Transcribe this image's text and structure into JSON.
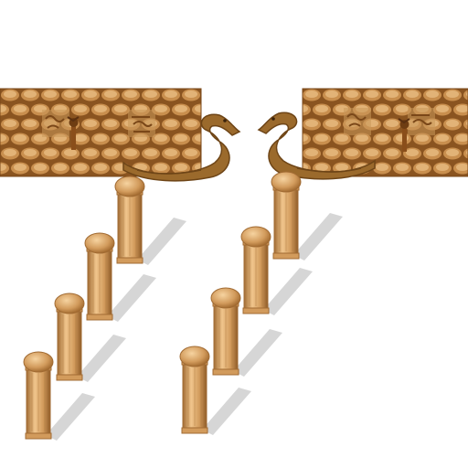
{
  "scene": {
    "kind": "tileset-sprite-sheet",
    "background": "#ffffff",
    "palette": {
      "stone_light": "#e2b377",
      "stone_mid": "#c98f4e",
      "stone_dark": "#9a6228",
      "mortar": "#8a5420",
      "serpent": "#9b6a2c",
      "serpent_dark": "#6e4517",
      "pillar_light": "#f0c58c",
      "pillar_mid": "#d29b5c",
      "pillar_dark": "#a16b33",
      "shadow": "#cfcfcf",
      "torch": "#8a4e1a",
      "carving": "#b07b42"
    },
    "walls": [
      {
        "name": "left-wall",
        "torch_icon": "torch-icon",
        "carving_icon": "carved-glyph-icon"
      },
      {
        "name": "right-wall",
        "torch_icon": "torch-icon",
        "carving_icon": "carved-glyph-icon"
      }
    ],
    "serpents": [
      {
        "name": "left-serpent-statue",
        "icon": "serpent-icon",
        "facing": "right"
      },
      {
        "name": "right-serpent-statue",
        "icon": "serpent-icon",
        "facing": "left"
      }
    ],
    "pillar_rows": [
      {
        "name": "left-pillar-row",
        "count": 4
      },
      {
        "name": "right-pillar-row",
        "count": 4
      }
    ]
  }
}
